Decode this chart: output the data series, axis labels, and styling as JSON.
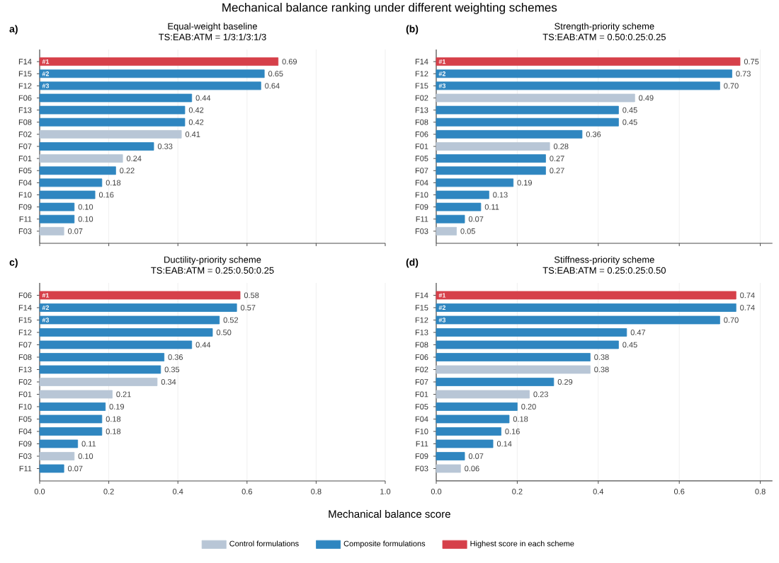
{
  "chart_data": [
    {
      "type": "bar",
      "orientation": "horizontal",
      "title": "Equal-weight baseline",
      "subtitle": "TS:EAB:ATM = 1/3:1/3:1/3",
      "annotations": [
        "a)",
        "Mechanical balance ranking under different weighting schemes",
        {
          "text": "#1",
          "y": "F14"
        },
        {
          "text": "#2",
          "y": "F15"
        },
        {
          "text": "#3",
          "y": "F12"
        }
      ],
      "categories": [
        "F14",
        "F15",
        "F12",
        "F06",
        "F13",
        "F08",
        "F02",
        "F07",
        "F01",
        "F05",
        "F04",
        "F10",
        "F09",
        "F11",
        "F03"
      ],
      "series": [
        {
          "color": "#b8c6d6",
          "values": [
            null,
            null,
            null,
            null,
            null,
            null,
            0.41,
            null,
            0.24,
            null,
            null,
            null,
            null,
            null,
            0.07
          ],
          "value_labels": [
            null,
            null,
            null,
            null,
            null,
            null,
            "0.41",
            null,
            "0.24",
            null,
            null,
            null,
            null,
            null,
            "0.07"
          ]
        },
        {
          "color": "#2f86c0",
          "values": [
            null,
            0.65,
            0.64,
            0.44,
            0.42,
            0.42,
            null,
            0.33,
            null,
            0.22,
            0.18,
            0.16,
            0.1,
            0.1,
            null
          ],
          "value_labels": [
            null,
            "0.65",
            "0.64",
            "0.44",
            "0.42",
            "0.42",
            null,
            "0.33",
            null,
            "0.22",
            "0.18",
            "0.16",
            "0.10",
            "0.10",
            null
          ]
        },
        {
          "color": "#d6404a",
          "values": [
            0.69,
            null,
            null,
            null,
            null,
            null,
            null,
            null,
            null,
            null,
            null,
            null,
            null,
            null,
            null
          ],
          "value_labels": [
            "0.69",
            null,
            null,
            null,
            null,
            null,
            null,
            null,
            null,
            null,
            null,
            null,
            null,
            null,
            null
          ]
        }
      ],
      "xlim": [
        0,
        1.0
      ],
      "xticks": [
        {
          "value": 0,
          "label": null
        },
        {
          "value": 0.2,
          "label": null
        },
        {
          "value": 0.4,
          "label": null
        },
        {
          "value": 0.6,
          "label": null
        },
        {
          "value": 0.8,
          "label": null
        },
        {
          "value": 1.0,
          "label": null
        }
      ],
      "tick_labels": "y",
      "grid": "x"
    },
    {
      "type": "bar",
      "orientation": "horizontal",
      "title": "Strength-priority scheme",
      "subtitle": "TS:EAB:ATM = 0.50:0.25:0.25",
      "annotations": [
        "(b)",
        {
          "text": "#1",
          "y": "F14"
        },
        {
          "text": "#2",
          "y": "F12"
        },
        {
          "text": "#3",
          "y": "F15"
        }
      ],
      "categories": [
        "F14",
        "F12",
        "F15",
        "F02",
        "F13",
        "F08",
        "F06",
        "F01",
        "F05",
        "F07",
        "F04",
        "F10",
        "F09",
        "F11",
        "F03"
      ],
      "series": [
        {
          "color": "#b8c6d6",
          "values": [
            null,
            null,
            null,
            0.49,
            null,
            null,
            null,
            0.28,
            null,
            null,
            null,
            null,
            null,
            null,
            0.05
          ],
          "value_labels": [
            null,
            null,
            null,
            "0.49",
            null,
            null,
            null,
            "0.28",
            null,
            null,
            null,
            null,
            null,
            null,
            "0.05"
          ]
        },
        {
          "color": "#2f86c0",
          "values": [
            null,
            0.73,
            0.7,
            null,
            0.45,
            0.45,
            0.36,
            null,
            0.27,
            0.27,
            0.19,
            0.13,
            0.11,
            0.07,
            null
          ],
          "value_labels": [
            null,
            "0.73",
            "0.70",
            null,
            "0.45",
            "0.45",
            "0.36",
            null,
            "0.27",
            "0.27",
            "0.19",
            "0.13",
            "0.11",
            "0.07",
            null
          ]
        },
        {
          "color": "#d6404a",
          "values": [
            0.75,
            null,
            null,
            null,
            null,
            null,
            null,
            null,
            null,
            null,
            null,
            null,
            null,
            null,
            null
          ],
          "value_labels": [
            "0.75",
            null,
            null,
            null,
            null,
            null,
            null,
            null,
            null,
            null,
            null,
            null,
            null,
            null,
            null
          ]
        }
      ],
      "xlim": [
        0,
        0.83
      ],
      "xticks": [
        {
          "value": 0,
          "label": null
        },
        {
          "value": 0.2,
          "label": null
        },
        {
          "value": 0.4,
          "label": null
        },
        {
          "value": 0.6,
          "label": null
        },
        {
          "value": 0.8,
          "label": null
        }
      ],
      "tick_labels": "y",
      "grid": "x"
    },
    {
      "type": "bar",
      "orientation": "horizontal",
      "title": "Ductility-priority scheme",
      "subtitle": "TS:EAB:ATM = 0.25:0.50:0.25",
      "xlabel": "Mechanical balance score",
      "legend": "bottom",
      "annotations": [
        "c)",
        {
          "text": "#1",
          "y": "F06"
        },
        {
          "text": "#2",
          "y": "F14"
        },
        {
          "text": "#3",
          "y": "F15"
        }
      ],
      "categories": [
        "F06",
        "F14",
        "F15",
        "F12",
        "F07",
        "F08",
        "F13",
        "F02",
        "F01",
        "F10",
        "F05",
        "F04",
        "F09",
        "F03",
        "F11"
      ],
      "series": [
        {
          "name": "Control formulations",
          "color": "#b8c6d6",
          "values": [
            null,
            null,
            null,
            null,
            null,
            null,
            null,
            0.34,
            0.21,
            null,
            null,
            null,
            null,
            0.1,
            null
          ],
          "value_labels": [
            null,
            null,
            null,
            null,
            null,
            null,
            null,
            "0.34",
            "0.21",
            null,
            null,
            null,
            null,
            "0.10",
            null
          ]
        },
        {
          "name": "Composite formulations",
          "color": "#2f86c0",
          "values": [
            null,
            0.57,
            0.52,
            0.5,
            0.44,
            0.36,
            0.35,
            null,
            null,
            0.19,
            0.18,
            0.18,
            0.11,
            null,
            0.07
          ],
          "value_labels": [
            null,
            "0.57",
            "0.52",
            "0.50",
            "0.44",
            "0.36",
            "0.35",
            null,
            null,
            "0.19",
            "0.18",
            "0.18",
            "0.11",
            null,
            "0.07"
          ]
        },
        {
          "name": "Highest score in each scheme",
          "color": "#d6404a",
          "values": [
            0.58,
            null,
            null,
            null,
            null,
            null,
            null,
            null,
            null,
            null,
            null,
            null,
            null,
            null,
            null
          ],
          "value_labels": [
            "0.58",
            null,
            null,
            null,
            null,
            null,
            null,
            null,
            null,
            null,
            null,
            null,
            null,
            null,
            null
          ]
        }
      ],
      "xlim": [
        0,
        1.0
      ],
      "xticks": [
        {
          "value": 0,
          "label": "0.0"
        },
        {
          "value": 0.2,
          "label": "0.2"
        },
        {
          "value": 0.4,
          "label": "0.4"
        },
        {
          "value": 0.6,
          "label": "0.6"
        },
        {
          "value": 0.8,
          "label": "0.8"
        },
        {
          "value": 1.0,
          "label": "1.0"
        }
      ],
      "grid": "x"
    },
    {
      "type": "bar",
      "orientation": "horizontal",
      "title": "Stiffness-priority scheme",
      "subtitle": "TS:EAB:ATM = 0.25:0.25:0.50",
      "annotations": [
        "(d)",
        {
          "text": "#1",
          "y": "F14"
        },
        {
          "text": "#2",
          "y": "F15"
        },
        {
          "text": "#3",
          "y": "F12"
        }
      ],
      "categories": [
        "F14",
        "F15",
        "F12",
        "F13",
        "F08",
        "F06",
        "F02",
        "F07",
        "F01",
        "F05",
        "F04",
        "F10",
        "F11",
        "F09",
        "F03"
      ],
      "series": [
        {
          "color": "#b8c6d6",
          "values": [
            null,
            null,
            null,
            null,
            null,
            null,
            0.38,
            null,
            0.23,
            null,
            null,
            null,
            null,
            null,
            0.06
          ],
          "value_labels": [
            null,
            null,
            null,
            null,
            null,
            null,
            "0.38",
            null,
            "0.23",
            null,
            null,
            null,
            null,
            null,
            "0.06"
          ]
        },
        {
          "color": "#2f86c0",
          "values": [
            null,
            0.74,
            0.7,
            0.47,
            0.45,
            0.38,
            null,
            0.29,
            null,
            0.2,
            0.18,
            0.16,
            0.14,
            0.07,
            null
          ],
          "value_labels": [
            null,
            "0.74",
            "0.70",
            "0.47",
            "0.45",
            "0.38",
            null,
            "0.29",
            null,
            "0.20",
            "0.18",
            "0.16",
            "0.14",
            "0.07",
            null
          ]
        },
        {
          "color": "#d6404a",
          "values": [
            0.74,
            null,
            null,
            null,
            null,
            null,
            null,
            null,
            null,
            null,
            null,
            null,
            null,
            null,
            null
          ],
          "value_labels": [
            "0.74",
            null,
            null,
            null,
            null,
            null,
            null,
            null,
            null,
            null,
            null,
            null,
            null,
            null,
            null
          ]
        }
      ],
      "xlim": [
        0,
        0.83
      ],
      "xticks": [
        {
          "value": 0,
          "label": "0.0"
        },
        {
          "value": 0.2,
          "label": "0.2"
        },
        {
          "value": 0.4,
          "label": "0.4"
        },
        {
          "value": 0.6,
          "label": "0.6"
        },
        {
          "value": 0.8,
          "label": "0.8"
        }
      ],
      "grid": "x"
    }
  ]
}
